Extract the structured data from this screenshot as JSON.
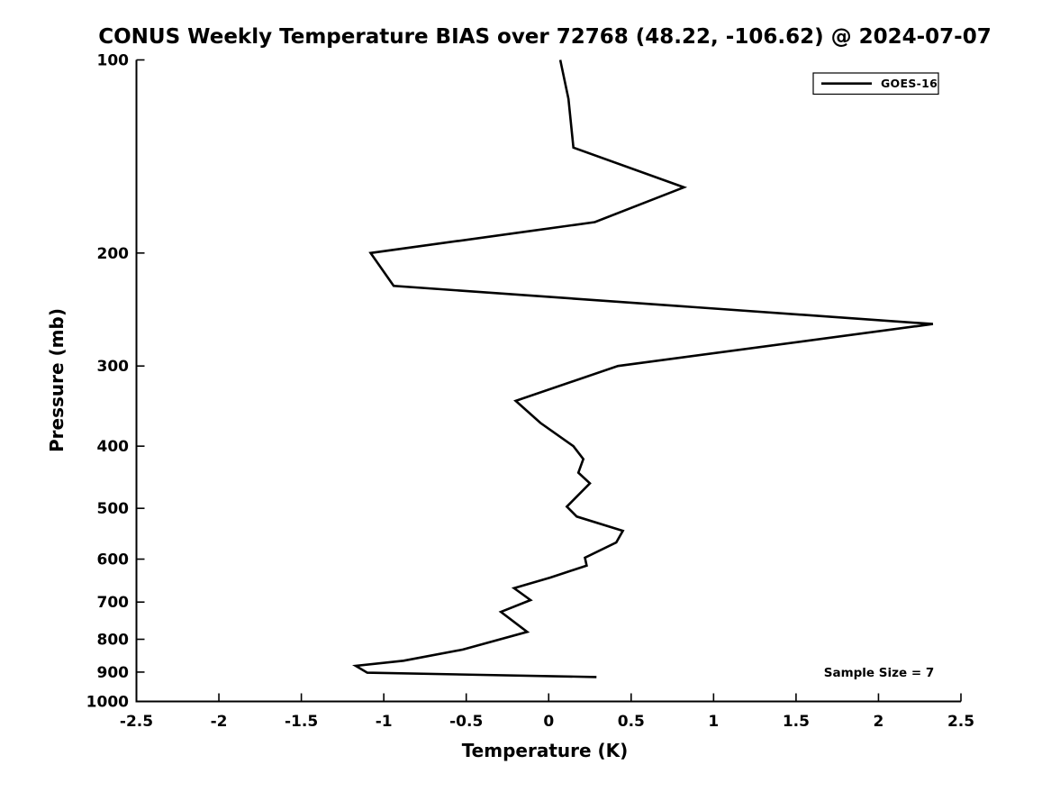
{
  "title": "CONUS Weekly Temperature BIAS over 72768 (48.22, -106.62) @ 2024-07-07",
  "annotation": "Sample Size = 7",
  "legend": {
    "entries": [
      {
        "label": "GOES-16",
        "color": "#000000"
      }
    ],
    "position": "top-right"
  },
  "axes": {
    "x": {
      "label": "Temperature (K)",
      "min": -2.5,
      "max": 2.5,
      "tick_labels": [
        "-2.5",
        "-2",
        "-1.5",
        "-1",
        "-0.5",
        "0",
        "0.5",
        "1",
        "1.5",
        "2",
        "2.5"
      ],
      "tick_values": [
        -2.5,
        -2,
        -1.5,
        -1,
        -0.5,
        0,
        0.5,
        1,
        1.5,
        2,
        2.5
      ]
    },
    "y": {
      "label": "Pressure (mb)",
      "min": 100,
      "max": 1000,
      "scale": "log",
      "direction": "inverted",
      "tick_labels": [
        "100",
        "200",
        "300",
        "400",
        "500",
        "600",
        "700",
        "800",
        "900",
        "1000"
      ],
      "tick_values": [
        100,
        200,
        300,
        400,
        500,
        600,
        700,
        800,
        900,
        1000
      ]
    }
  },
  "chart_data": {
    "type": "line",
    "title": "CONUS Weekly Temperature BIAS over 72768 (48.22, -106.62) @ 2024-07-07",
    "xlabel": "Temperature (K)",
    "ylabel": "Pressure (mb)",
    "xlim": [
      -2.5,
      2.5
    ],
    "ylim": [
      1000,
      100
    ],
    "yscale": "log",
    "grid": false,
    "legend_position": "top-right",
    "annotations": [
      "Sample Size = 7"
    ],
    "series": [
      {
        "name": "GOES-16",
        "color": "#000000",
        "line_width": 2.6,
        "pressure_mb": [
          100,
          115,
          137,
          158,
          179,
          200,
          225,
          258,
          300,
          340,
          368,
          400,
          419,
          440,
          457,
          497,
          515,
          542,
          565,
          597,
          614,
          641,
          666,
          695,
          725,
          779,
          830,
          864,
          880,
          902,
          916
        ],
        "bias_k": [
          0.07,
          0.12,
          0.15,
          0.82,
          0.28,
          -1.08,
          -0.94,
          2.33,
          0.42,
          -0.2,
          -0.05,
          0.15,
          0.21,
          0.18,
          0.25,
          0.11,
          0.17,
          0.45,
          0.41,
          0.22,
          0.23,
          0.01,
          -0.21,
          -0.11,
          -0.29,
          -0.13,
          -0.52,
          -0.88,
          -1.17,
          -1.1,
          0.29
        ]
      }
    ]
  }
}
